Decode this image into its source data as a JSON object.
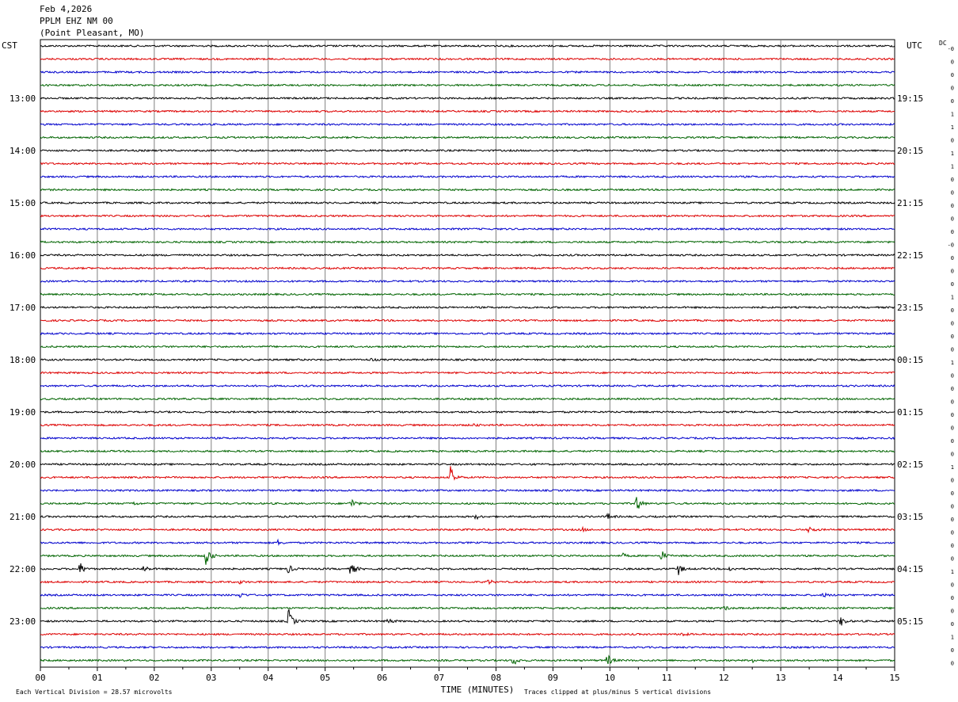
{
  "header": {
    "date": "Feb 4,2026",
    "station": "PPLM EHZ NM 00",
    "location": "(Point Pleasant, MO)"
  },
  "axis": {
    "left_label": "CST",
    "right_label": "UTC",
    "dc_label": "DC",
    "x_title": "TIME (MINUTES)"
  },
  "footer": {
    "scale_note": "Each Vertical Division =   28.57 microvolts",
    "clip_note": "Traces clipped at plus/minus 5 vertical divisions"
  },
  "chart_data": {
    "type": "line",
    "title": "",
    "xlabel": "TIME (MINUTES)",
    "xlim": [
      0,
      15
    ],
    "x_ticks": [
      "00",
      "01",
      "02",
      "03",
      "04",
      "05",
      "06",
      "07",
      "08",
      "09",
      "10",
      "11",
      "12",
      "13",
      "14",
      "15"
    ],
    "rows": 48,
    "trace_colors": [
      "#000000",
      "#dd0000",
      "#0000cc",
      "#006400"
    ],
    "left_time_labels": [
      {
        "row": 4,
        "label": "13:00"
      },
      {
        "row": 8,
        "label": "14:00"
      },
      {
        "row": 12,
        "label": "15:00"
      },
      {
        "row": 16,
        "label": "16:00"
      },
      {
        "row": 20,
        "label": "17:00"
      },
      {
        "row": 24,
        "label": "18:00"
      },
      {
        "row": 28,
        "label": "19:00"
      },
      {
        "row": 32,
        "label": "20:00"
      },
      {
        "row": 36,
        "label": "21:00"
      },
      {
        "row": 40,
        "label": "22:00"
      },
      {
        "row": 44,
        "label": "23:00"
      }
    ],
    "right_time_labels": [
      {
        "row": 4,
        "label": "19:15"
      },
      {
        "row": 8,
        "label": "20:15"
      },
      {
        "row": 12,
        "label": "21:15"
      },
      {
        "row": 16,
        "label": "22:15"
      },
      {
        "row": 20,
        "label": "23:15"
      },
      {
        "row": 24,
        "label": "00:15"
      },
      {
        "row": 28,
        "label": "01:15"
      },
      {
        "row": 32,
        "label": "02:15"
      },
      {
        "row": 36,
        "label": "03:15"
      },
      {
        "row": 40,
        "label": "04:15"
      },
      {
        "row": 44,
        "label": "05:15"
      }
    ],
    "dc_offsets": [
      "-0",
      "0",
      "0",
      "0",
      "0",
      "1",
      "1",
      "0",
      "1",
      "1",
      "0",
      "0",
      "0",
      "0",
      "0",
      "-0",
      "0",
      "0",
      "0",
      "1",
      "0",
      "0",
      "0",
      "0",
      "1",
      "0",
      "0",
      "0",
      "0",
      "0",
      "0",
      "0",
      "1",
      "0",
      "0",
      "0",
      "0",
      "0",
      "0",
      "0",
      "1",
      "0",
      "0",
      "0",
      "0",
      "1",
      "0",
      "0"
    ],
    "events": [
      {
        "row": 24,
        "minute": 5.8,
        "amp": 2
      },
      {
        "row": 29,
        "minute": 7.6,
        "amp": 2
      },
      {
        "row": 33,
        "minute": 7.2,
        "amp": 14
      },
      {
        "row": 35,
        "minute": 1.6,
        "amp": 3
      },
      {
        "row": 35,
        "minute": 5.45,
        "amp": 8
      },
      {
        "row": 35,
        "minute": 10.45,
        "amp": 16
      },
      {
        "row": 36,
        "minute": 7.65,
        "amp": 3
      },
      {
        "row": 36,
        "minute": 9.95,
        "amp": 5
      },
      {
        "row": 37,
        "minute": 9.5,
        "amp": 3
      },
      {
        "row": 37,
        "minute": 13.5,
        "amp": 5
      },
      {
        "row": 38,
        "minute": 4.15,
        "amp": 4
      },
      {
        "row": 39,
        "minute": 2.9,
        "amp": 18
      },
      {
        "row": 39,
        "minute": 10.2,
        "amp": 4
      },
      {
        "row": 39,
        "minute": 10.9,
        "amp": 8
      },
      {
        "row": 40,
        "minute": 0.7,
        "amp": 8
      },
      {
        "row": 40,
        "minute": 1.8,
        "amp": 6
      },
      {
        "row": 40,
        "minute": 4.35,
        "amp": 6
      },
      {
        "row": 40,
        "minute": 5.45,
        "amp": 10
      },
      {
        "row": 40,
        "minute": 11.2,
        "amp": 8
      },
      {
        "row": 40,
        "minute": 12.1,
        "amp": 3
      },
      {
        "row": 41,
        "minute": 7.85,
        "amp": 4
      },
      {
        "row": 41,
        "minute": 3.5,
        "amp": 2
      },
      {
        "row": 42,
        "minute": 3.5,
        "amp": 4
      },
      {
        "row": 42,
        "minute": 13.75,
        "amp": 3
      },
      {
        "row": 43,
        "minute": 12.0,
        "amp": 3
      },
      {
        "row": 44,
        "minute": 4.35,
        "amp": 18
      },
      {
        "row": 44,
        "minute": 6.1,
        "amp": 4
      },
      {
        "row": 44,
        "minute": 14.05,
        "amp": 8
      },
      {
        "row": 45,
        "minute": 11.25,
        "amp": 3
      },
      {
        "row": 47,
        "minute": 8.3,
        "amp": 8
      },
      {
        "row": 47,
        "minute": 9.95,
        "amp": 9
      },
      {
        "row": 47,
        "minute": 12.5,
        "amp": 3
      }
    ]
  }
}
